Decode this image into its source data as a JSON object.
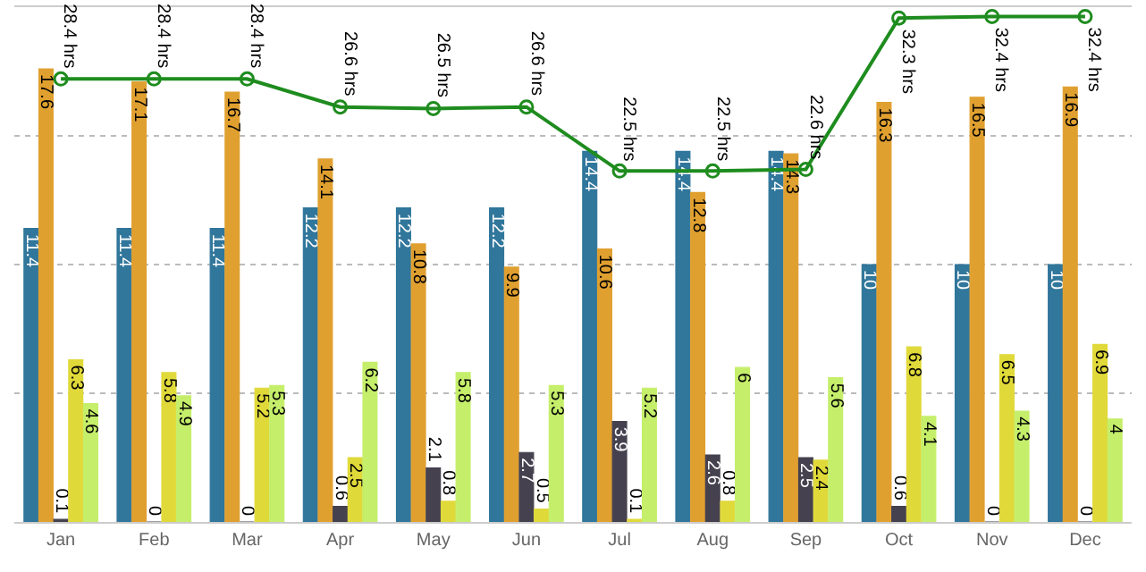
{
  "chart_data": {
    "type": "bar",
    "categories": [
      "Jan",
      "Feb",
      "Mar",
      "Apr",
      "May",
      "Jun",
      "Jul",
      "Aug",
      "Sep",
      "Oct",
      "Nov",
      "Dec"
    ],
    "series": [
      {
        "color": "#31769b",
        "values": [
          11.4,
          11.4,
          11.4,
          12.2,
          12.2,
          12.2,
          14.4,
          14.4,
          14.4,
          10,
          10,
          10
        ]
      },
      {
        "color": "#e0a030",
        "values": [
          17.6,
          17.1,
          16.7,
          14.1,
          10.8,
          9.9,
          10.6,
          12.8,
          14.3,
          16.3,
          16.5,
          16.9
        ]
      },
      {
        "color": "#45414f",
        "values": [
          0.1,
          0,
          0,
          0.6,
          2.1,
          2.7,
          3.9,
          2.6,
          2.5,
          0.6,
          0,
          0
        ]
      },
      {
        "color": "#e0d93a",
        "values": [
          6.3,
          5.8,
          5.2,
          2.5,
          0.8,
          0.5,
          0.1,
          0.8,
          2.4,
          6.8,
          6.5,
          6.9
        ]
      },
      {
        "color": "#c5ee6a",
        "values": [
          4.6,
          4.9,
          5.3,
          6.2,
          5.8,
          5.3,
          5.2,
          6,
          5.6,
          4.1,
          4.3,
          4
        ]
      },
      {
        "type": "line",
        "axis": "y2",
        "color": "#1e8c1e",
        "marker": "circle",
        "values": [
          28.4,
          28.4,
          28.4,
          26.6,
          26.5,
          26.6,
          22.5,
          22.5,
          22.6,
          32.3,
          32.4,
          32.4
        ],
        "value_labels": [
          "28.4 hrs",
          "28.4 hrs",
          "28.4 hrs",
          "26.6 hrs",
          "26.5 hrs",
          "26.6 hrs",
          "22.5 hrs",
          "22.5 hrs",
          "22.6 hrs",
          "32.3 hrs",
          "32.4 hrs",
          "32.4 hrs"
        ]
      }
    ],
    "ylim": [
      0,
      20
    ],
    "y2lim": [
      0,
      33
    ],
    "data_labels": true,
    "grid": "y",
    "tick_labels": "x"
  }
}
